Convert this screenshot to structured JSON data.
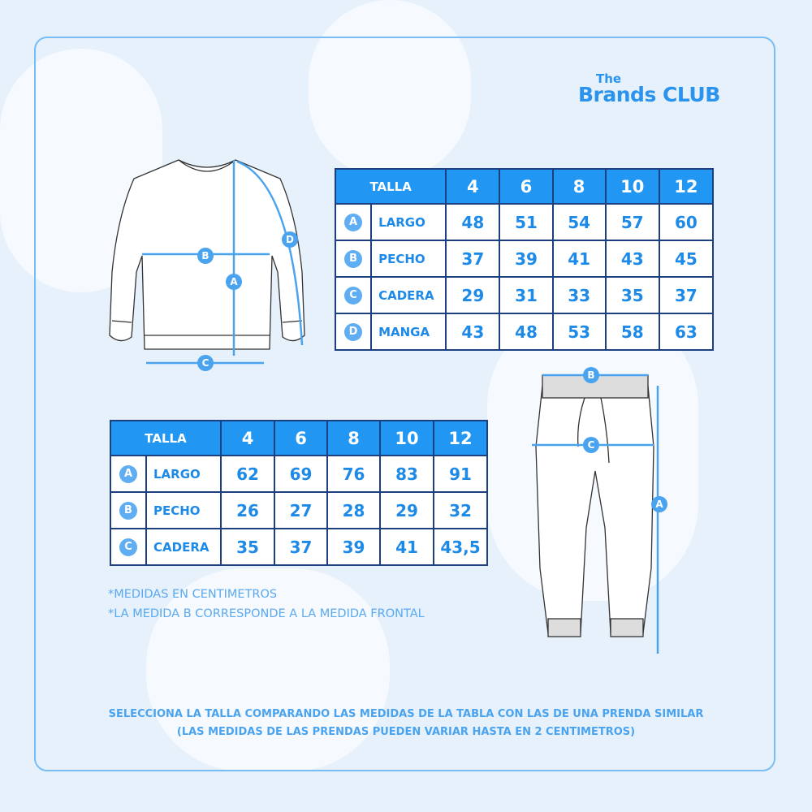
{
  "brand": {
    "the": "The",
    "name": "Brands CLUB"
  },
  "top_table": {
    "header": "TALLA",
    "sizes": [
      "4",
      "6",
      "8",
      "10",
      "12"
    ],
    "rows": [
      {
        "letter": "A",
        "label": "LARGO",
        "values": [
          "48",
          "51",
          "54",
          "57",
          "60"
        ]
      },
      {
        "letter": "B",
        "label": "PECHO",
        "values": [
          "37",
          "39",
          "41",
          "43",
          "45"
        ]
      },
      {
        "letter": "C",
        "label": "CADERA",
        "values": [
          "29",
          "31",
          "33",
          "35",
          "37"
        ]
      },
      {
        "letter": "D",
        "label": "MANGA",
        "values": [
          "43",
          "48",
          "53",
          "58",
          "63"
        ]
      }
    ]
  },
  "bottom_table": {
    "header": "TALLA",
    "sizes": [
      "4",
      "6",
      "8",
      "10",
      "12"
    ],
    "rows": [
      {
        "letter": "A",
        "label": "LARGO",
        "values": [
          "62",
          "69",
          "76",
          "83",
          "91"
        ]
      },
      {
        "letter": "B",
        "label": "PECHO",
        "values": [
          "26",
          "27",
          "28",
          "29",
          "32"
        ]
      },
      {
        "letter": "C",
        "label": "CADERA",
        "values": [
          "35",
          "37",
          "39",
          "41",
          "43,5"
        ]
      }
    ]
  },
  "sweater_markers": [
    "A",
    "B",
    "C",
    "D"
  ],
  "pants_markers": [
    "A",
    "B",
    "C"
  ],
  "notes": [
    "*MEDIDAS EN CENTIMETROS",
    "*LA MEDIDA B CORRESPONDE A LA MEDIDA FRONTAL"
  ],
  "footer": [
    "SELECCIONA LA TALLA COMPARANDO LAS MEDIDAS DE LA TABLA CON LAS DE UNA PRENDA SIMILAR",
    "(LAS MEDIDAS DE LAS PRENDAS PUEDEN VARIAR HASTA EN 2 CENTIMETROS)"
  ],
  "colors": {
    "header": "#2196f3",
    "border": "#1c3f7f",
    "text": "#1e8ae8",
    "accent": "#5fadf2",
    "background": "#e6f1fb"
  }
}
